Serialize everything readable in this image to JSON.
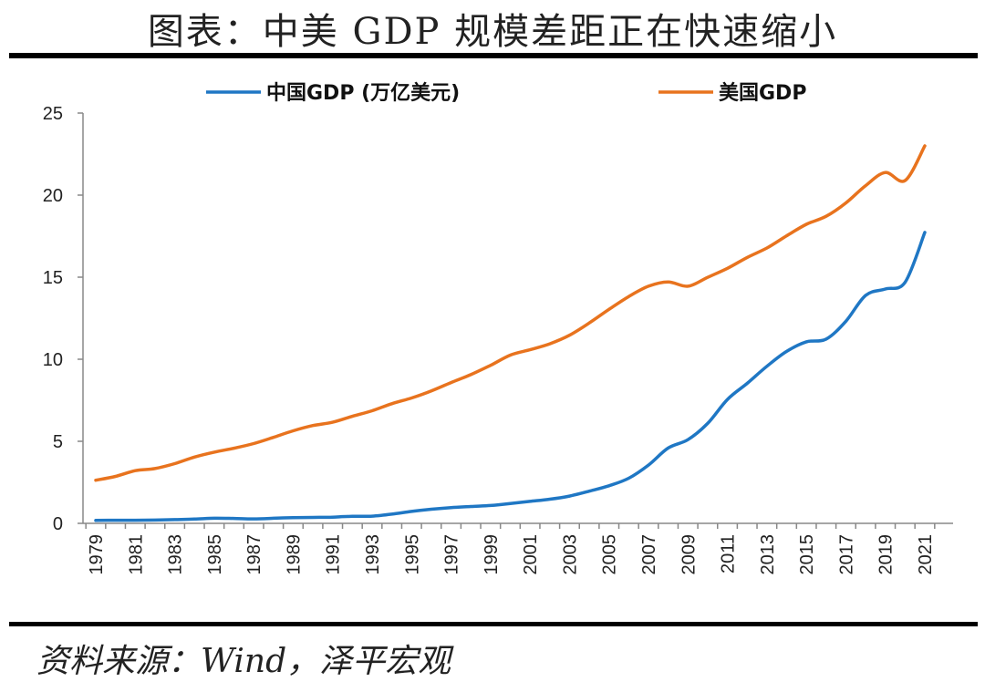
{
  "title": "图表：中美 GDP 规模差距正在快速缩小",
  "source": "资料来源：Wind，泽平宏观",
  "chart_data": {
    "type": "line",
    "title": "",
    "xlabel": "",
    "ylabel": "",
    "ylim": [
      0,
      25
    ],
    "yticks": [
      "0",
      "5",
      "10",
      "15",
      "20",
      "25"
    ],
    "xticks": [
      "1979",
      "1981",
      "1983",
      "1985",
      "1987",
      "1989",
      "1991",
      "1993",
      "1995",
      "1997",
      "1999",
      "2001",
      "2003",
      "2005",
      "2007",
      "2009",
      "2011",
      "2013",
      "2015",
      "2017",
      "2019",
      "2021"
    ],
    "grid": false,
    "legend_position": "top",
    "x": [
      1979,
      1980,
      1981,
      1982,
      1983,
      1984,
      1985,
      1986,
      1987,
      1988,
      1989,
      1990,
      1991,
      1992,
      1993,
      1994,
      1995,
      1996,
      1997,
      1998,
      1999,
      2000,
      2001,
      2002,
      2003,
      2004,
      2005,
      2006,
      2007,
      2008,
      2009,
      2010,
      2011,
      2012,
      2013,
      2014,
      2015,
      2016,
      2017,
      2018,
      2019,
      2020,
      2021
    ],
    "series": [
      {
        "name": "中国GDP (万亿美元)",
        "color": "#1f77c4",
        "values": [
          0.18,
          0.19,
          0.19,
          0.2,
          0.23,
          0.26,
          0.31,
          0.3,
          0.27,
          0.31,
          0.35,
          0.36,
          0.38,
          0.43,
          0.44,
          0.56,
          0.73,
          0.86,
          0.96,
          1.03,
          1.09,
          1.21,
          1.34,
          1.47,
          1.66,
          1.96,
          2.29,
          2.75,
          3.55,
          4.59,
          5.1,
          6.09,
          7.55,
          8.53,
          9.57,
          10.48,
          11.06,
          11.23,
          12.31,
          13.89,
          14.28,
          14.69,
          17.73
        ]
      },
      {
        "name": "美国GDP",
        "color": "#e8731e",
        "values": [
          2.63,
          2.86,
          3.21,
          3.34,
          3.64,
          4.04,
          4.34,
          4.58,
          4.86,
          5.24,
          5.64,
          5.96,
          6.16,
          6.52,
          6.86,
          7.29,
          7.64,
          8.07,
          8.58,
          9.06,
          9.63,
          10.25,
          10.58,
          10.94,
          11.46,
          12.21,
          13.04,
          13.82,
          14.45,
          14.71,
          14.45,
          14.99,
          15.54,
          16.2,
          16.78,
          17.52,
          18.22,
          18.71,
          19.52,
          20.58,
          21.38,
          20.89,
          23.0
        ]
      }
    ]
  }
}
